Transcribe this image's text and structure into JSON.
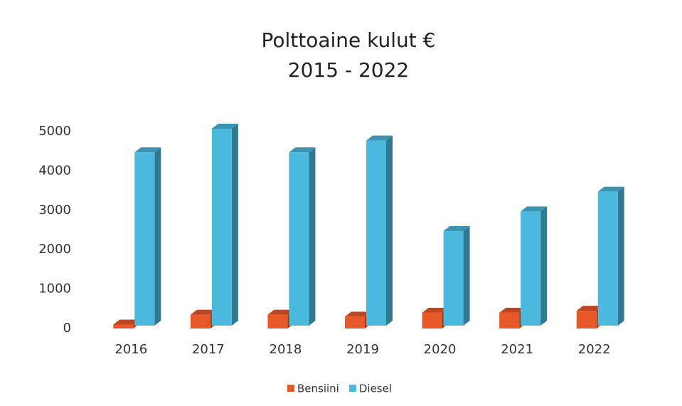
{
  "chart_data": {
    "type": "bar3d",
    "title": "Polttoaine kulut €",
    "subtitle": "2015 - 2022",
    "categories": [
      "2016",
      "2017",
      "2018",
      "2019",
      "2020",
      "2021",
      "2022"
    ],
    "series": [
      {
        "name": "Bensiini",
        "color": "#e8592a",
        "values": [
          100,
          350,
          350,
          300,
          400,
          400,
          450
        ]
      },
      {
        "name": "Diesel",
        "color": "#4bb8dd",
        "values": [
          4400,
          5000,
          4400,
          4700,
          2400,
          2900,
          3400
        ]
      }
    ],
    "ylim": [
      0,
      5000
    ],
    "yticks": [
      0,
      1000,
      2000,
      3000,
      4000,
      5000
    ],
    "grid": false,
    "legend": "bottom"
  }
}
